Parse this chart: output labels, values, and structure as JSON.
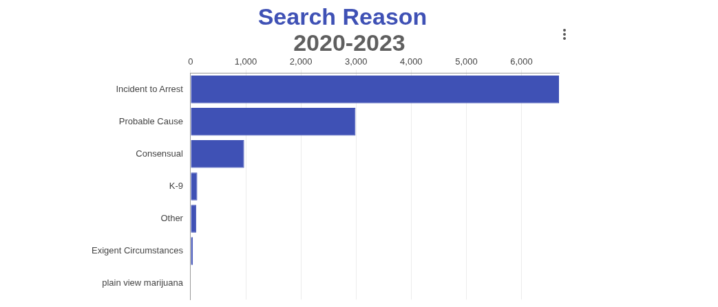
{
  "chart_data": {
    "type": "bar",
    "orientation": "horizontal",
    "title": "Search Reason",
    "subtitle": "2020-2023",
    "categories": [
      "Incident to Arrest",
      "Probable Cause",
      "Consensual",
      "K-9",
      "Other",
      "Exigent Circumstances",
      "plain view marijuana"
    ],
    "values": [
      6680,
      2990,
      970,
      120,
      100,
      40,
      null
    ],
    "color": "#3f51b5",
    "xlim": [
      0,
      6680
    ],
    "xticks": [
      0,
      {
        "value": 1000,
        "label": "1,000"
      },
      {
        "value": 2000,
        "label": "2,000"
      },
      {
        "value": 3000,
        "label": "3,000"
      },
      {
        "value": 4000,
        "label": "4,000"
      },
      {
        "value": 5000,
        "label": "5,000"
      },
      {
        "value": 6000,
        "label": "6,000"
      }
    ],
    "grid": "x",
    "legend": false
  }
}
